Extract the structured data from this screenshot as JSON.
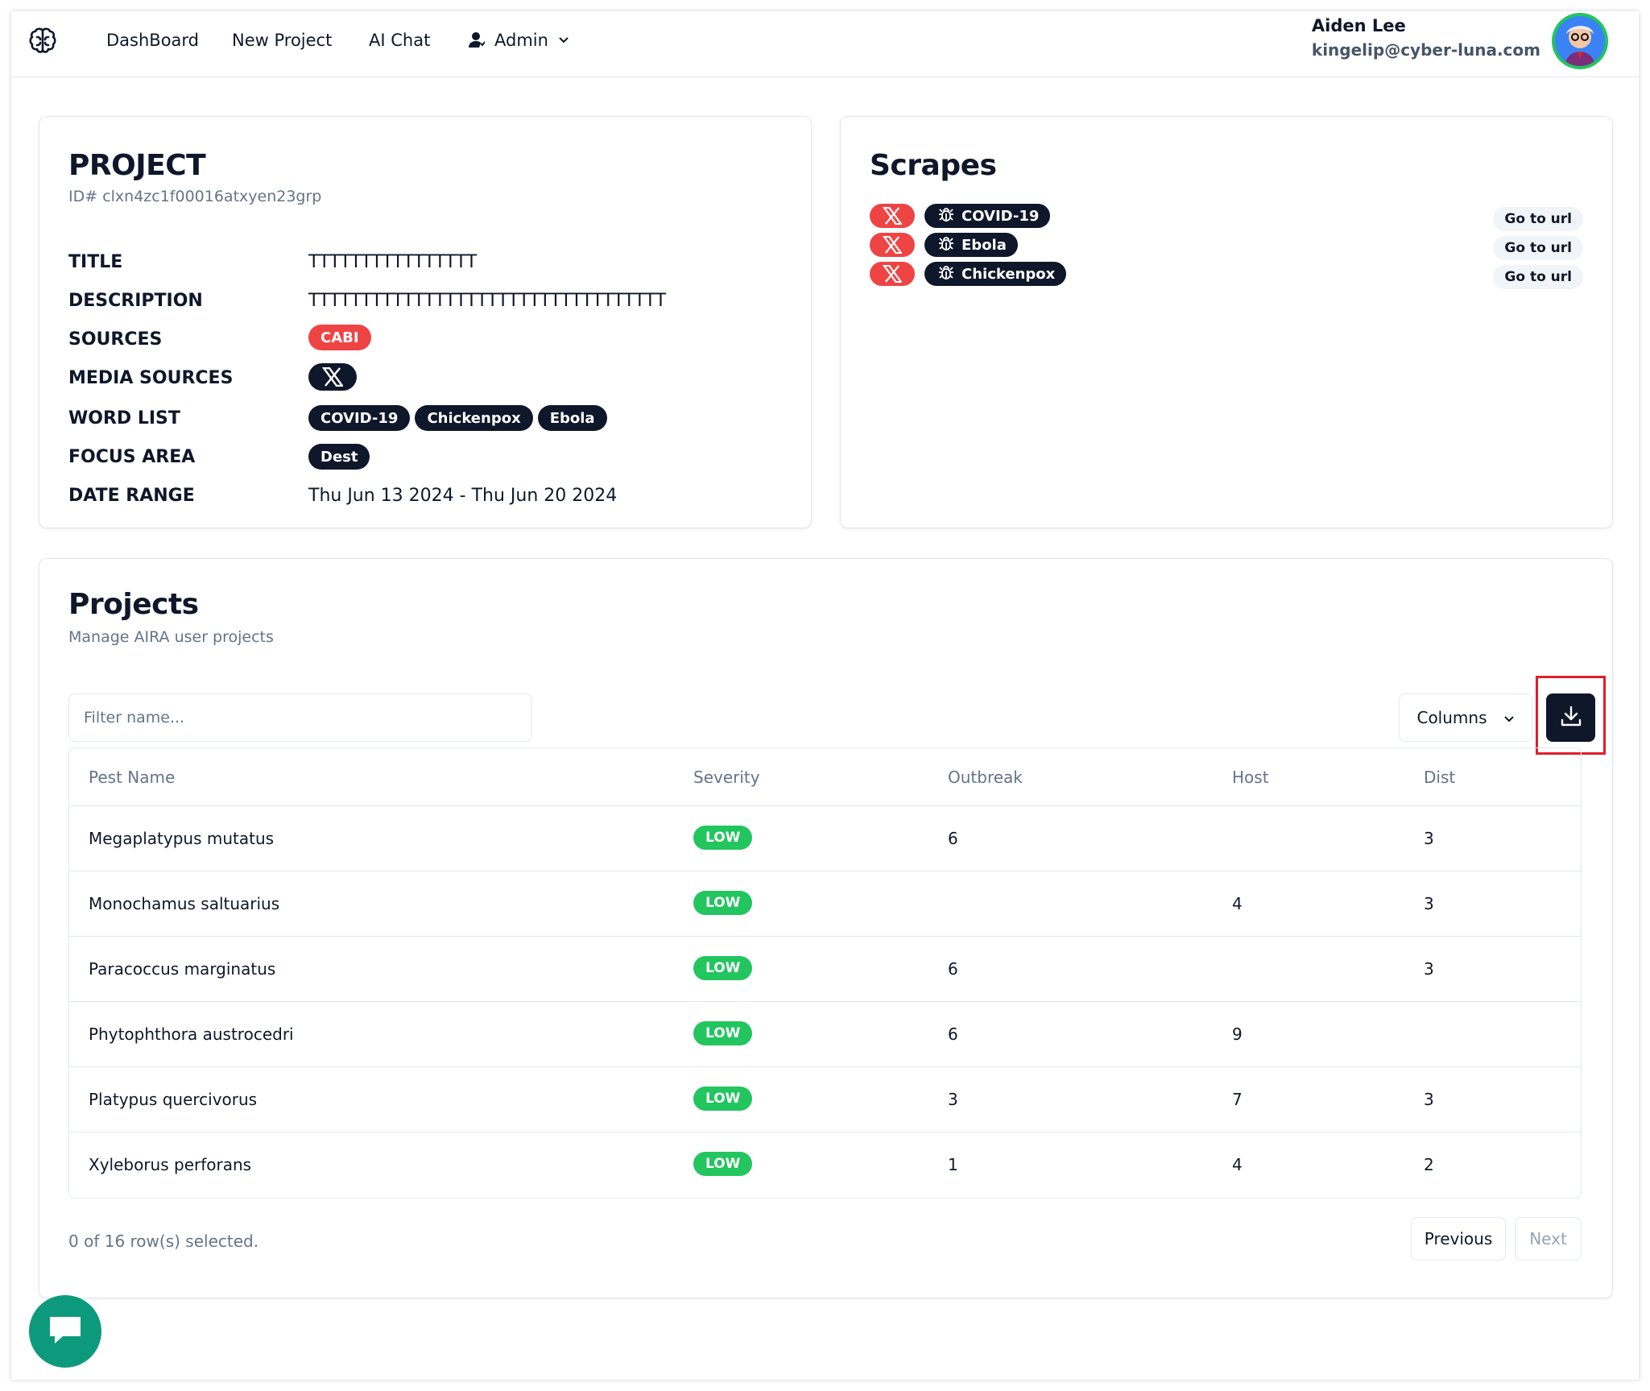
{
  "nav": {
    "items": [
      {
        "label": "DashBoard"
      },
      {
        "label": "New Project"
      },
      {
        "label": "AI Chat"
      },
      {
        "label": "Admin"
      }
    ]
  },
  "user": {
    "name": "Aiden Lee",
    "email": "kingelip@cyber-luna.com"
  },
  "project": {
    "heading": "PROJECT",
    "id_text": "ID# clxn4zc1f00016atxyen23grp",
    "labels": {
      "title": "TITLE",
      "description": "DESCRIPTION",
      "sources": "SOURCES",
      "media_sources": "MEDIA SOURCES",
      "word_list": "WORD LIST",
      "focus_area": "FOCUS AREA",
      "date_range": "DATE RANGE"
    },
    "title": "TTTTTTTTTTTTTTTT",
    "description": "TTTTTTTTTTTTTTTTTTTTTTTTTTTTTTTTTT",
    "sources": [
      "CABI"
    ],
    "word_list": [
      "COVID-19",
      "Chickenpox",
      "Ebola"
    ],
    "focus_area": [
      "Dest"
    ],
    "date_range": "Thu Jun 13 2024 - Thu Jun 20 2024"
  },
  "scrapes": {
    "heading": "Scrapes",
    "items": [
      {
        "term": "COVID-19",
        "link_label": "Go to url"
      },
      {
        "term": "Ebola",
        "link_label": "Go to url"
      },
      {
        "term": "Chickenpox",
        "link_label": "Go to url"
      }
    ]
  },
  "projects": {
    "heading": "Projects",
    "subheading": "Manage AIRA user projects",
    "filter_placeholder": "Filter name...",
    "columns_label": "Columns",
    "headers": [
      "Pest Name",
      "Severity",
      "Outbreak",
      "Host",
      "Dist"
    ],
    "rows": [
      {
        "name": "Megaplatypus mutatus",
        "severity": "LOW",
        "outbreak": "6",
        "host": "",
        "dist": "3"
      },
      {
        "name": "Monochamus saltuarius",
        "severity": "LOW",
        "outbreak": "",
        "host": "4",
        "dist": "3"
      },
      {
        "name": "Paracoccus marginatus",
        "severity": "LOW",
        "outbreak": "6",
        "host": "",
        "dist": "3"
      },
      {
        "name": "Phytophthora austrocedri",
        "severity": "LOW",
        "outbreak": "6",
        "host": "9",
        "dist": ""
      },
      {
        "name": "Platypus quercivorus",
        "severity": "LOW",
        "outbreak": "3",
        "host": "7",
        "dist": "3"
      },
      {
        "name": "Xyleborus perforans",
        "severity": "LOW",
        "outbreak": "1",
        "host": "4",
        "dist": "2"
      }
    ],
    "selected_text": "0 of 16 row(s) selected.",
    "prev_label": "Previous",
    "next_label": "Next"
  },
  "colors": {
    "primary": "#0f172a",
    "danger": "#ef4444",
    "success": "#22c55e",
    "chat_fab": "#0d9a7c",
    "highlight": "#e11d2b"
  }
}
